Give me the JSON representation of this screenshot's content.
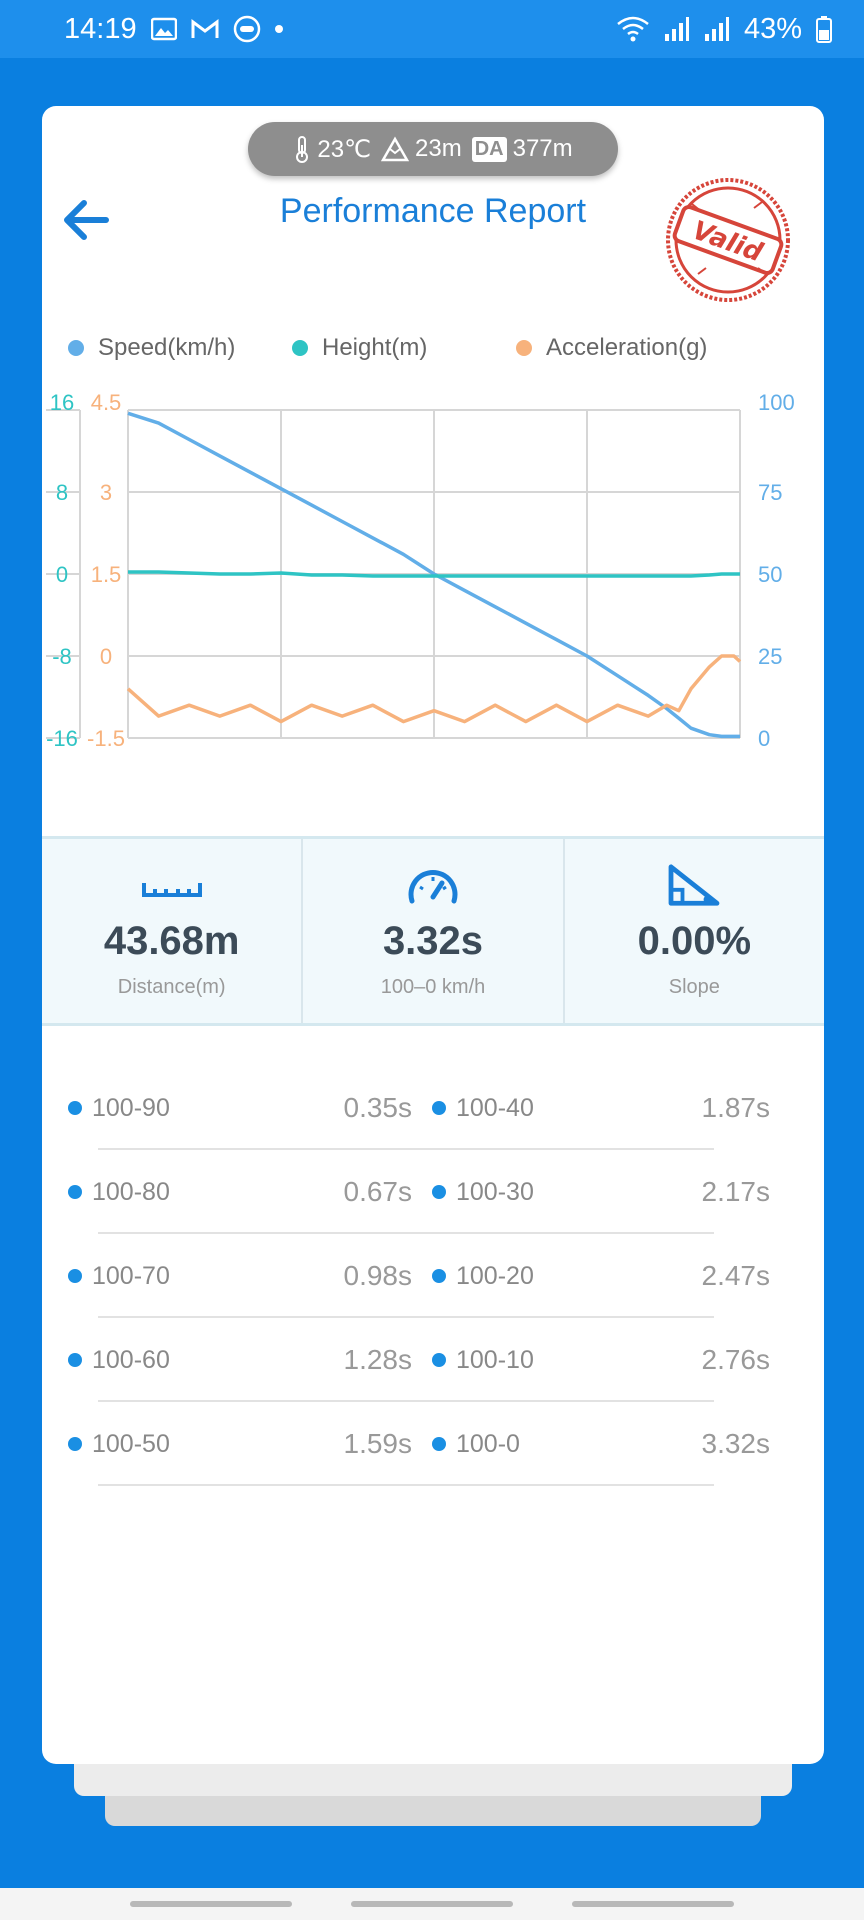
{
  "status_bar": {
    "time": "14:19",
    "battery": "43%",
    "icons_left": [
      "image-icon",
      "gmail-icon",
      "app-icon",
      "dot"
    ],
    "icons_right": [
      "wifi-icon",
      "signal-icon",
      "signal-icon",
      "battery-icon"
    ]
  },
  "conditions": {
    "temperature": "23℃",
    "altitude": "23m",
    "da_label": "DA",
    "density_altitude": "377m"
  },
  "header": {
    "title": "Performance Report",
    "stamp_text": "Valid",
    "back_icon": "arrow-left-icon"
  },
  "colors": {
    "primary": "#1a7fd8",
    "background": "#0a7fe0",
    "speed": "#62aee8",
    "height": "#2ec4c4",
    "acceleration": "#f7b27c",
    "stamp": "#d6453a"
  },
  "legend": [
    {
      "label": "Speed(km/h)",
      "color": "#62aee8"
    },
    {
      "label": "Height(m)",
      "color": "#2ec4c4"
    },
    {
      "label": "Acceleration(g)",
      "color": "#f7b27c"
    }
  ],
  "chart_data": {
    "type": "line",
    "title": "",
    "xlabel": "",
    "ylabel": "",
    "grid": true,
    "legend_position": "top",
    "axes": {
      "height": {
        "ticks": [
          "16",
          "8",
          "0",
          "-8",
          "-16"
        ],
        "ylim": [
          -16,
          16
        ]
      },
      "acceleration": {
        "ticks": [
          "4.5",
          "3",
          "1.5",
          "0",
          "-1.5"
        ],
        "ylim": [
          -1.5,
          4.5
        ]
      },
      "speed": {
        "ticks": [
          "100",
          "75",
          "50",
          "25",
          "0"
        ],
        "ylim": [
          0,
          100
        ]
      }
    },
    "x": [
      0,
      0.05,
      0.1,
      0.15,
      0.2,
      0.25,
      0.3,
      0.35,
      0.4,
      0.45,
      0.5,
      0.55,
      0.6,
      0.65,
      0.7,
      0.75,
      0.8,
      0.85,
      0.88,
      0.9,
      0.92,
      0.95,
      0.97,
      0.99,
      1.0
    ],
    "series": [
      {
        "name": "Speed(km/h)",
        "axis": "speed",
        "color": "#62aee8",
        "values": [
          99,
          96,
          91,
          86,
          81,
          76,
          71,
          66,
          61,
          56,
          50,
          45,
          40,
          35,
          30,
          25,
          19,
          13,
          9,
          6,
          3,
          1,
          0.5,
          0.5,
          0.5
        ]
      },
      {
        "name": "Height(m)",
        "axis": "height",
        "color": "#2ec4c4",
        "values": [
          0.2,
          0.2,
          0.1,
          0.0,
          0.0,
          0.1,
          -0.1,
          -0.1,
          -0.2,
          -0.2,
          -0.2,
          -0.2,
          -0.2,
          -0.2,
          -0.2,
          -0.2,
          -0.2,
          -0.2,
          -0.2,
          -0.2,
          -0.2,
          -0.1,
          0.0,
          0.0,
          0.0
        ]
      },
      {
        "name": "Acceleration(g)",
        "axis": "acceleration",
        "color": "#f7b27c",
        "values": [
          -0.6,
          -1.1,
          -0.9,
          -1.1,
          -0.9,
          -1.2,
          -0.9,
          -1.1,
          -0.9,
          -1.2,
          -1.0,
          -1.2,
          -0.9,
          -1.2,
          -0.9,
          -1.2,
          -0.9,
          -1.1,
          -0.9,
          -1.0,
          -0.6,
          -0.2,
          0.0,
          0.0,
          -0.1
        ]
      }
    ]
  },
  "stats": [
    {
      "icon": "ruler-icon",
      "value": "43.68m",
      "label": "Distance(m)"
    },
    {
      "icon": "speedometer-icon",
      "value": "3.32s",
      "label": "100–0 km/h"
    },
    {
      "icon": "slope-icon",
      "value": "0.00%",
      "label": "Slope"
    }
  ],
  "splits": [
    {
      "left": {
        "name": "100-90",
        "time": "0.35s"
      },
      "right": {
        "name": "100-40",
        "time": "1.87s"
      }
    },
    {
      "left": {
        "name": "100-80",
        "time": "0.67s"
      },
      "right": {
        "name": "100-30",
        "time": "2.17s"
      }
    },
    {
      "left": {
        "name": "100-70",
        "time": "0.98s"
      },
      "right": {
        "name": "100-20",
        "time": "2.47s"
      }
    },
    {
      "left": {
        "name": "100-60",
        "time": "1.28s"
      },
      "right": {
        "name": "100-10",
        "time": "2.76s"
      }
    },
    {
      "left": {
        "name": "100-50",
        "time": "1.59s"
      },
      "right": {
        "name": "100-0",
        "time": "3.32s"
      }
    }
  ]
}
